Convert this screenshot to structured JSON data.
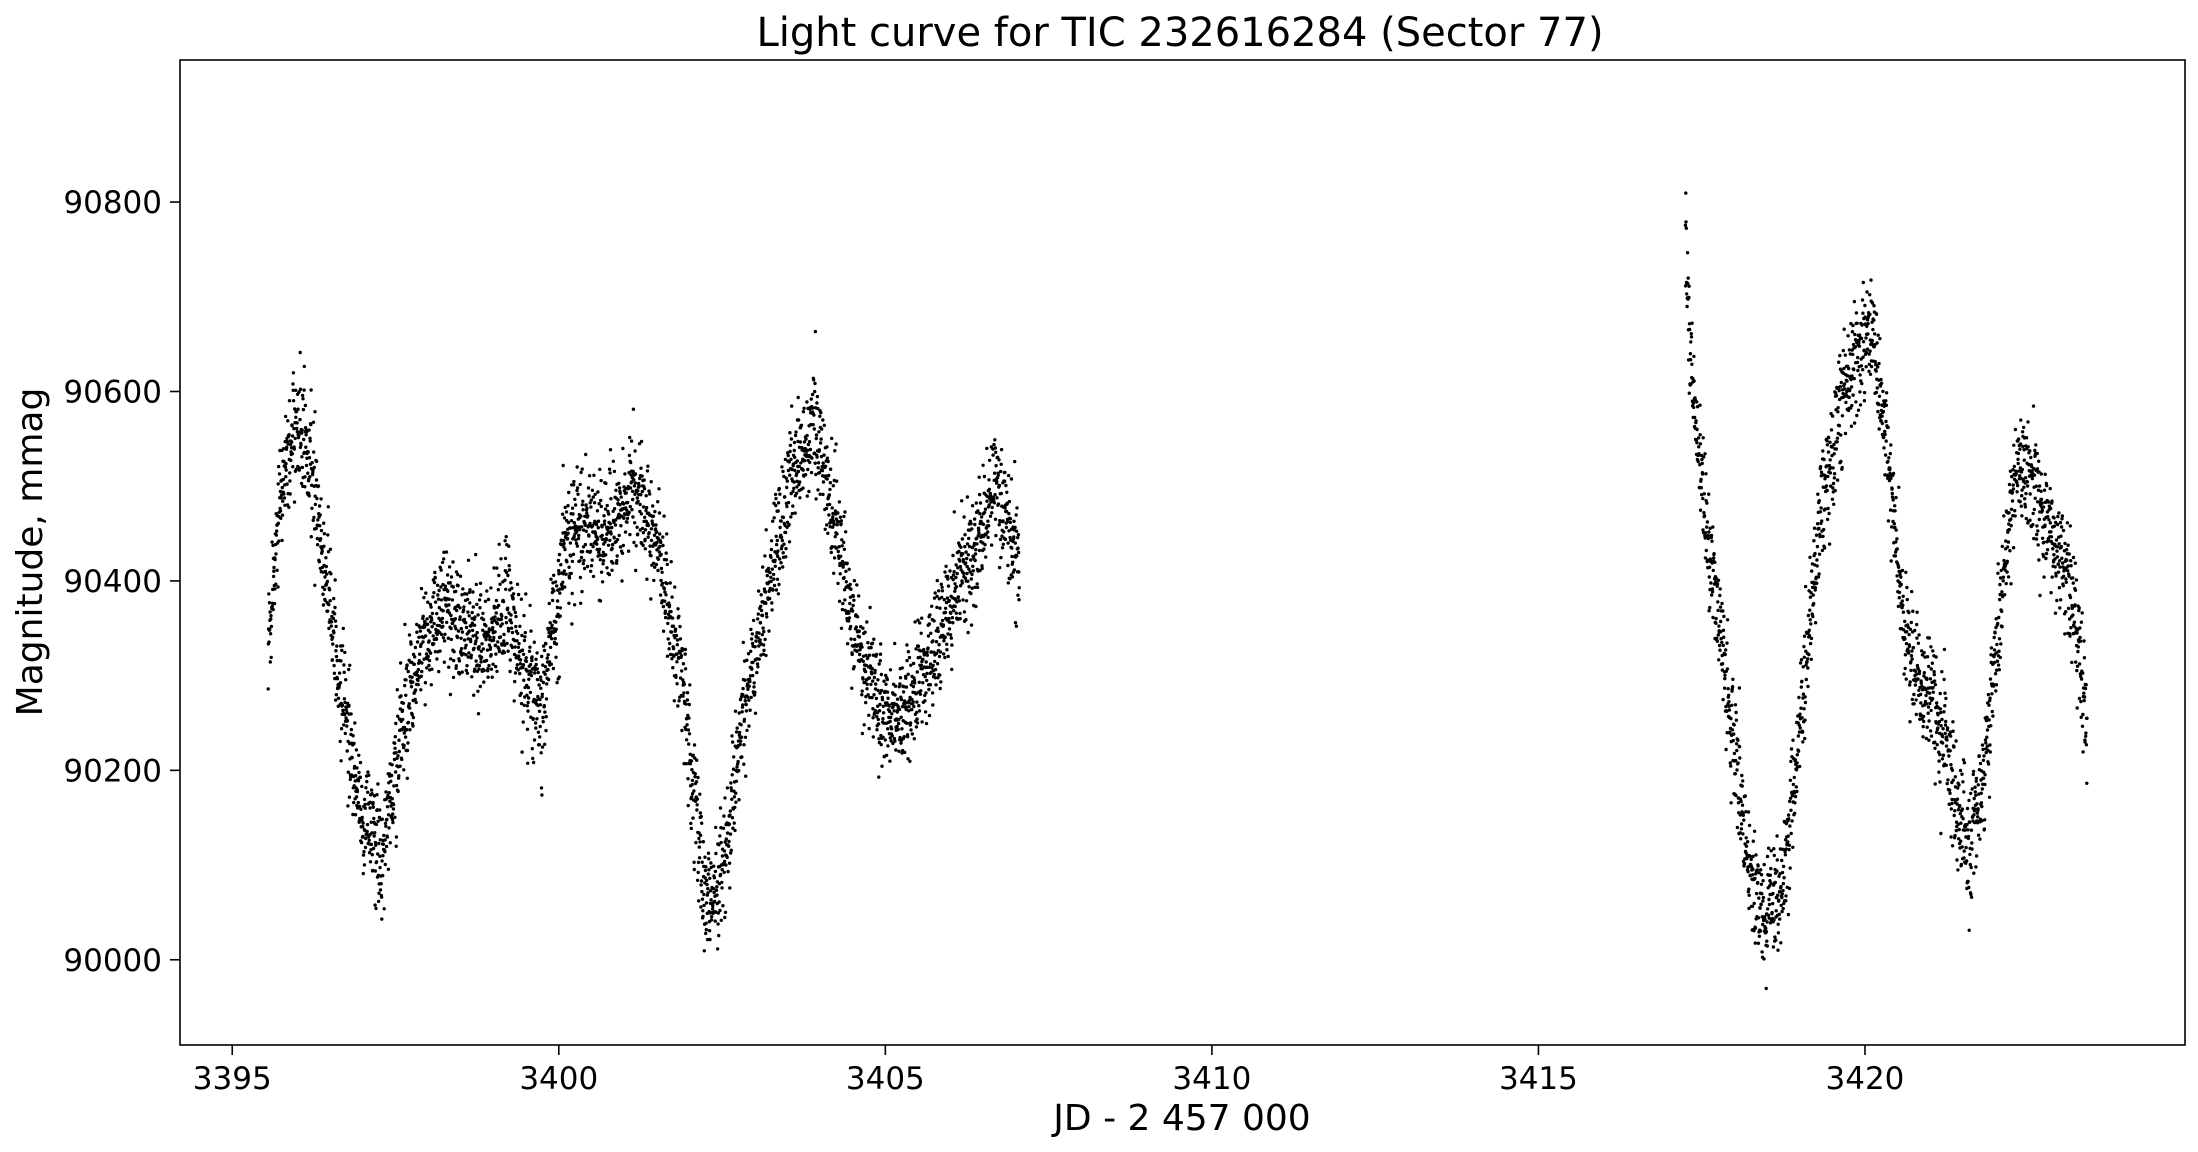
{
  "chart_data": {
    "type": "scatter",
    "title": "Light curve for TIC 232616284 (Sector 77)",
    "xlabel": "JD - 2 457 000",
    "ylabel": "Magnitude, mmag",
    "xlim": [
      3394.2,
      3424.9
    ],
    "ylim": [
      89910,
      90950
    ],
    "xticks": [
      3395,
      3400,
      3405,
      3410,
      3415,
      3420
    ],
    "xtick_labels": [
      "3395",
      "3400",
      "3405",
      "3410",
      "3415",
      "3420"
    ],
    "yticks": [
      90000,
      90200,
      90400,
      90600,
      90800
    ],
    "ytick_labels": [
      "90000",
      "90200",
      "90400",
      "90600",
      "90800"
    ],
    "grid": false,
    "marker_color": "#000000",
    "segments": [
      {
        "x": [
          3395.55,
          3395.7,
          3395.9,
          3396.05,
          3396.3,
          3396.55,
          3396.75,
          3397.0,
          3397.3,
          3397.6,
          3397.9,
          3398.2,
          3398.5,
          3398.85,
          3399.2,
          3399.5,
          3399.75,
          3400.1,
          3400.5,
          3400.8,
          3401.15,
          3401.5,
          3401.9,
          3402.25,
          3402.5,
          3402.8,
          3403.2,
          3403.6,
          3403.95,
          3404.3,
          3404.6,
          3404.9,
          3405.2,
          3405.5,
          3405.8,
          3406.1,
          3406.4,
          3406.7,
          3407.05
        ],
        "y": [
          90330,
          90460,
          90560,
          90570,
          90480,
          90340,
          90250,
          90150,
          90100,
          90250,
          90330,
          90370,
          90350,
          90330,
          90370,
          90300,
          90270,
          90440,
          90460,
          90460,
          90500,
          90440,
          90300,
          90050,
          90090,
          90250,
          90400,
          90520,
          90560,
          90430,
          90330,
          90270,
          90250,
          90290,
          90330,
          90390,
          90440,
          90500,
          90420
        ],
        "scatter": 30
      },
      {
        "x": [
          3417.25,
          3417.35,
          3417.5,
          3417.7,
          3417.95,
          3418.2,
          3418.45,
          3418.75,
          3419.0,
          3419.3,
          3419.6,
          3419.85,
          3420.1,
          3420.35,
          3420.6,
          3420.85,
          3421.1,
          3421.35,
          3421.6,
          3421.85,
          3422.1,
          3422.35,
          3422.6,
          3422.85,
          3423.15,
          3423.4
        ],
        "y": [
          90760,
          90620,
          90500,
          90400,
          90250,
          90110,
          90040,
          90080,
          90250,
          90450,
          90580,
          90630,
          90670,
          90530,
          90350,
          90290,
          90260,
          90180,
          90120,
          90210,
          90400,
          90530,
          90500,
          90450,
          90400,
          90250
        ],
        "scatter": 30
      }
    ],
    "points_per_day": 300,
    "annotations": []
  }
}
